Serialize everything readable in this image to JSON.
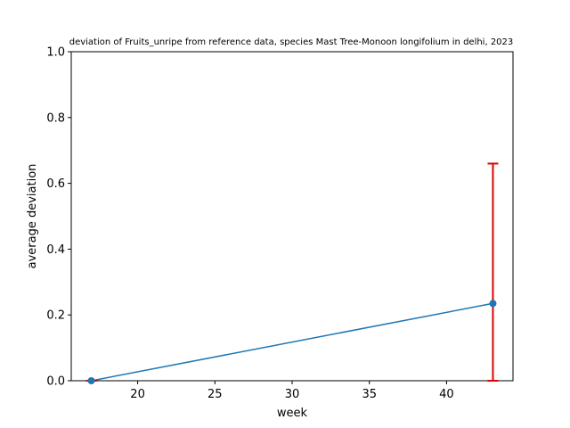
{
  "chart_data": {
    "type": "line",
    "title": "deviation of Fruits_unripe from reference data, species Mast Tree-Monoon longifolium in delhi, 2023",
    "xlabel": "week",
    "ylabel": "average deviation",
    "xlim": [
      15.7,
      44.3
    ],
    "ylim": [
      0,
      1.0
    ],
    "x_ticks": [
      20,
      25,
      30,
      35,
      40
    ],
    "y_ticks": [
      0.0,
      0.2,
      0.4,
      0.6,
      0.8,
      1.0
    ],
    "x_tick_labels": [
      "20",
      "25",
      "30",
      "35",
      "40"
    ],
    "y_tick_labels": [
      "0.0",
      "0.2",
      "0.4",
      "0.6",
      "0.8",
      "1.0"
    ],
    "grid": false,
    "series": [
      {
        "x": [
          17,
          43
        ],
        "y": [
          0.0,
          0.235
        ],
        "color": "#1f77b4",
        "marker": "circle",
        "error_bars": {
          "color": "#e00000",
          "lower": [
            0.0,
            0.235
          ],
          "upper": [
            0.0,
            0.425
          ]
        }
      }
    ]
  }
}
